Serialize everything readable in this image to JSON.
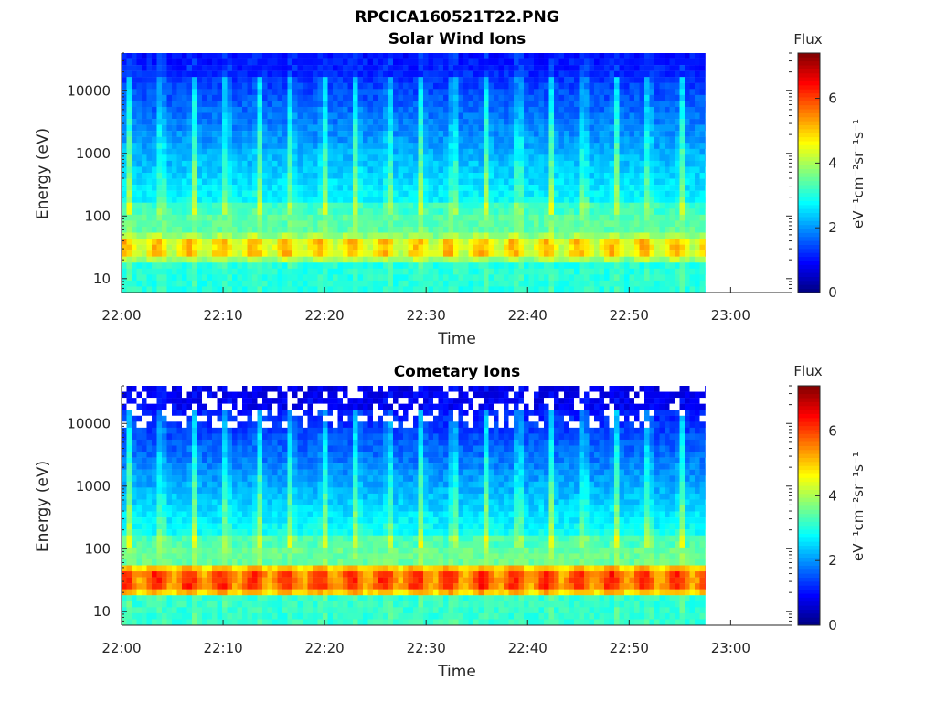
{
  "figure": {
    "title": "RPCICA160521T22.PNG"
  },
  "chart_data": [
    {
      "type": "heatmap",
      "title": "Solar Wind Ions",
      "xlabel": "Time",
      "ylabel": "Energy (eV)",
      "x_ticks": [
        "22:00",
        "22:10",
        "22:20",
        "22:30",
        "22:40",
        "22:50",
        "23:00"
      ],
      "xlim": [
        "22:00",
        "23:06"
      ],
      "data_end": "22:57.5",
      "y_scale": "log",
      "y_ticks": [
        "10",
        "100",
        "1000",
        "10000"
      ],
      "ylim": [
        6,
        40000
      ],
      "colorbar": {
        "title": "Flux",
        "label": "eV⁻¹cm⁻²sr⁻¹s⁻¹",
        "range": [
          0,
          7.4
        ],
        "ticks": [
          "0",
          "2",
          "4",
          "6"
        ],
        "colormap": "jet"
      },
      "description_values": {
        "sweep_period_min": 3.2,
        "background_flux": 2.9,
        "high_energy_flux": 1.0,
        "peak_band_eV": [
          20,
          60
        ],
        "peak_flux": 5.2
      }
    },
    {
      "type": "heatmap",
      "title": "Cometary Ions",
      "xlabel": "Time",
      "ylabel": "Energy (eV)",
      "x_ticks": [
        "22:00",
        "22:10",
        "22:20",
        "22:30",
        "22:40",
        "22:50",
        "23:00"
      ],
      "xlim": [
        "22:00",
        "23:06"
      ],
      "data_end": "22:57.5",
      "y_scale": "log",
      "y_ticks": [
        "10",
        "100",
        "1000",
        "10000"
      ],
      "ylim": [
        6,
        40000
      ],
      "colorbar": {
        "title": "Flux",
        "label": "eV⁻¹cm⁻²sr⁻¹s⁻¹",
        "range": [
          0,
          7.4
        ],
        "ticks": [
          "0",
          "2",
          "4",
          "6"
        ],
        "colormap": "jet"
      },
      "description_values": {
        "sweep_period_min": 3.2,
        "background_flux": 3.0,
        "high_energy_flux": 0.6,
        "peak_band_eV": [
          20,
          60
        ],
        "peak_flux": 6.3
      }
    }
  ]
}
